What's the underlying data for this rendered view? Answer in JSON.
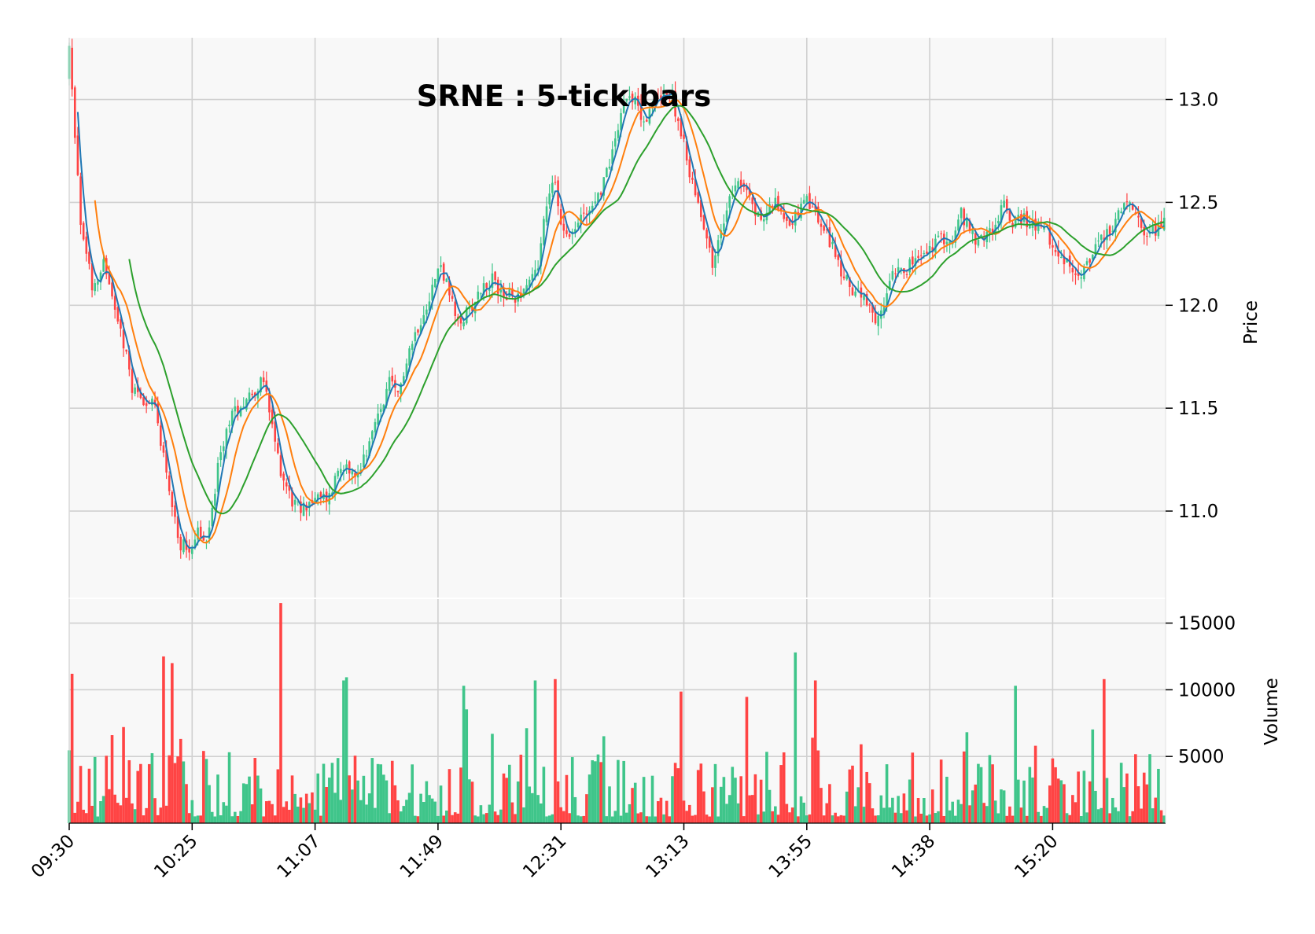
{
  "chart_data": {
    "type": "candlestick",
    "title": "SRNE : 5-tick bars",
    "xlabel": "",
    "ylabel_price": "Price",
    "ylabel_volume": "Volume",
    "x_tick_labels": [
      "09:30",
      "10:25",
      "11:07",
      "11:49",
      "12:31",
      "13:13",
      "13:55",
      "14:38",
      "15:20"
    ],
    "price_ticks": [
      "11.0",
      "11.5",
      "12.0",
      "12.5",
      "13.0"
    ],
    "volume_ticks": [
      "5000",
      "10000",
      "15000"
    ],
    "price_range": [
      10.58,
      13.3
    ],
    "volume_range": [
      0,
      16800
    ],
    "grid": true,
    "colors": {
      "up": "#3fc58a",
      "down": "#ff4444",
      "ma_short": "#1f77b4",
      "ma_mid": "#ff7f0e",
      "ma_long": "#2ca02c",
      "panel_background": "#f8f8f8",
      "grid": "#d0d0d0"
    },
    "moving_averages": [
      {
        "window": "short",
        "color": "#1f77b4"
      },
      {
        "window": "mid",
        "color": "#ff7f0e"
      },
      {
        "window": "long",
        "color": "#2ca02c"
      }
    ],
    "close_path": [
      [
        0,
        13.25
      ],
      [
        4,
        12.4
      ],
      [
        8,
        12.1
      ],
      [
        12,
        12.2
      ],
      [
        18,
        11.9
      ],
      [
        22,
        11.6
      ],
      [
        26,
        11.55
      ],
      [
        30,
        11.5
      ],
      [
        34,
        11.2
      ],
      [
        38,
        10.85
      ],
      [
        42,
        10.82
      ],
      [
        45,
        10.9
      ],
      [
        48,
        10.83
      ],
      [
        52,
        11.2
      ],
      [
        56,
        11.45
      ],
      [
        60,
        11.52
      ],
      [
        64,
        11.58
      ],
      [
        68,
        11.63
      ],
      [
        71,
        11.4
      ],
      [
        74,
        11.2
      ],
      [
        78,
        11.05
      ],
      [
        81,
        11.0
      ],
      [
        84,
        11.05
      ],
      [
        88,
        11.06
      ],
      [
        91,
        11.07
      ],
      [
        94,
        11.2
      ],
      [
        97,
        11.25
      ],
      [
        100,
        11.15
      ],
      [
        104,
        11.3
      ],
      [
        108,
        11.45
      ],
      [
        112,
        11.62
      ],
      [
        115,
        11.55
      ],
      [
        118,
        11.75
      ],
      [
        122,
        11.9
      ],
      [
        126,
        12.05
      ],
      [
        130,
        12.2
      ],
      [
        133,
        12.05
      ],
      [
        136,
        11.9
      ],
      [
        140,
        11.98
      ],
      [
        144,
        12.08
      ],
      [
        148,
        12.12
      ],
      [
        152,
        12.05
      ],
      [
        156,
        12.04
      ],
      [
        160,
        12.1
      ],
      [
        164,
        12.2
      ],
      [
        167,
        12.5
      ],
      [
        170,
        12.6
      ],
      [
        172,
        12.4
      ],
      [
        176,
        12.35
      ],
      [
        180,
        12.45
      ],
      [
        184,
        12.5
      ],
      [
        187,
        12.6
      ],
      [
        190,
        12.75
      ],
      [
        193,
        12.95
      ],
      [
        196,
        13.05
      ],
      [
        199,
        12.95
      ],
      [
        202,
        12.9
      ],
      [
        205,
        13.0
      ],
      [
        208,
        13.05
      ],
      [
        211,
        13.0
      ],
      [
        214,
        12.85
      ],
      [
        216,
        12.7
      ],
      [
        219,
        12.55
      ],
      [
        222,
        12.4
      ],
      [
        225,
        12.2
      ],
      [
        227,
        12.3
      ],
      [
        229,
        12.4
      ],
      [
        231,
        12.55
      ],
      [
        234,
        12.62
      ],
      [
        237,
        12.55
      ],
      [
        240,
        12.45
      ],
      [
        243,
        12.42
      ],
      [
        246,
        12.5
      ],
      [
        249,
        12.47
      ],
      [
        252,
        12.4
      ],
      [
        255,
        12.45
      ],
      [
        258,
        12.5
      ],
      [
        261,
        12.45
      ],
      [
        264,
        12.35
      ],
      [
        267,
        12.3
      ],
      [
        270,
        12.15
      ],
      [
        273,
        12.1
      ],
      [
        276,
        12.05
      ],
      [
        279,
        12.0
      ],
      [
        282,
        11.9
      ],
      [
        285,
        12.0
      ],
      [
        287,
        12.15
      ],
      [
        290,
        12.2
      ],
      [
        293,
        12.18
      ],
      [
        296,
        12.22
      ],
      [
        300,
        12.25
      ],
      [
        303,
        12.3
      ],
      [
        306,
        12.33
      ],
      [
        309,
        12.3
      ],
      [
        312,
        12.45
      ],
      [
        315,
        12.35
      ],
      [
        318,
        12.3
      ],
      [
        321,
        12.35
      ],
      [
        324,
        12.38
      ],
      [
        327,
        12.5
      ],
      [
        330,
        12.4
      ],
      [
        333,
        12.42
      ],
      [
        336,
        12.4
      ],
      [
        339,
        12.38
      ],
      [
        342,
        12.35
      ],
      [
        345,
        12.25
      ],
      [
        348,
        12.2
      ],
      [
        351,
        12.18
      ],
      [
        354,
        12.17
      ],
      [
        357,
        12.2
      ],
      [
        360,
        12.3
      ],
      [
        363,
        12.35
      ],
      [
        366,
        12.4
      ],
      [
        369,
        12.5
      ],
      [
        372,
        12.45
      ],
      [
        375,
        12.38
      ],
      [
        378,
        12.35
      ],
      [
        381,
        12.38
      ],
      [
        383,
        12.4
      ]
    ]
  }
}
